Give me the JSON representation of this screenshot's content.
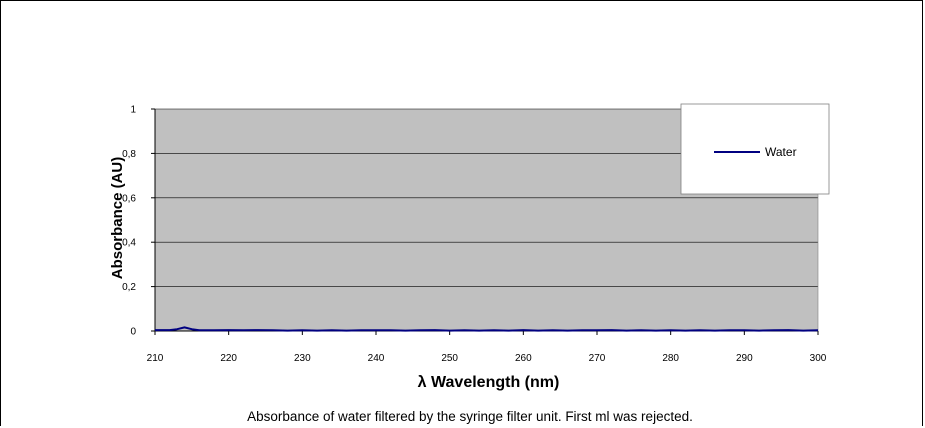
{
  "chart_data": {
    "type": "line",
    "title": "",
    "xlabel": "λ  Wavelength (nm)",
    "ylabel": "Absorbance (AU)",
    "caption": "Absorbance of water filtered by the syringe filter unit. First ml was rejected.",
    "xlim": [
      210,
      300
    ],
    "ylim": [
      0,
      1
    ],
    "x_ticks": [
      "210",
      "220",
      "230",
      "240",
      "250",
      "260",
      "270",
      "280",
      "290",
      "300"
    ],
    "y_ticks": [
      "0",
      "0,2",
      "0,4",
      "0,6",
      "0,8",
      "1"
    ],
    "grid": true,
    "legend_position": "top-right",
    "colors": {
      "plot_background": "#c0c0c0",
      "series": "#000080",
      "grid": "#000000"
    },
    "series": [
      {
        "name": "Water",
        "x": [
          210,
          212,
          213,
          214,
          215,
          216,
          218,
          220,
          222,
          224,
          226,
          228,
          230,
          232,
          234,
          236,
          238,
          240,
          242,
          244,
          246,
          248,
          250,
          252,
          254,
          256,
          258,
          260,
          262,
          264,
          266,
          268,
          270,
          272,
          274,
          276,
          278,
          280,
          282,
          284,
          286,
          288,
          290,
          292,
          294,
          296,
          298,
          300
        ],
        "values": [
          0.004,
          0.004,
          0.008,
          0.016,
          0.008,
          0.003,
          0.003,
          0.004,
          0.003,
          0.004,
          0.003,
          0.002,
          0.003,
          0.002,
          0.003,
          0.002,
          0.003,
          0.003,
          0.003,
          0.002,
          0.003,
          0.004,
          0.002,
          0.003,
          0.002,
          0.003,
          0.002,
          0.004,
          0.002,
          0.003,
          0.002,
          0.003,
          0.003,
          0.004,
          0.002,
          0.003,
          0.002,
          0.003,
          0.002,
          0.003,
          0.002,
          0.003,
          0.003,
          0.002,
          0.003,
          0.004,
          0.002,
          0.003
        ]
      }
    ]
  }
}
